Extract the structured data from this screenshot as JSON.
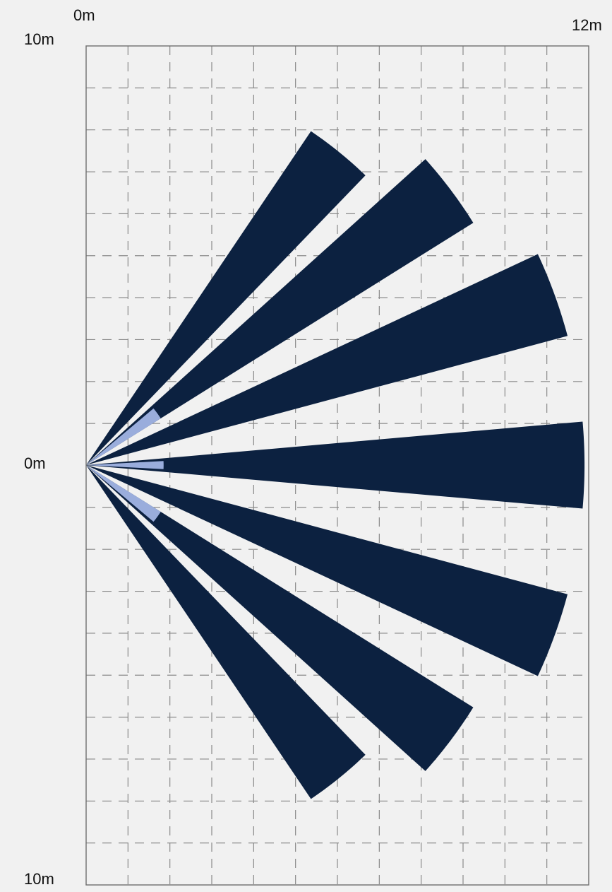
{
  "labels": {
    "x_start": "0m",
    "x_end": "12m",
    "y_top": "10m",
    "y_middle": "0m",
    "y_bottom": "10m"
  },
  "grid": {
    "x_range_m": [
      0,
      12
    ],
    "y_range_m": [
      -10,
      10
    ],
    "columns": 12,
    "rows": 20,
    "line_style": "dashed"
  },
  "colors": {
    "background": "#f1f1f1",
    "grid": "#8a8a8a",
    "beam": "#0c2140",
    "near_zone": "#9aaddc"
  },
  "beams": [
    {
      "angle_deg": 51,
      "inner_range_m": 0,
      "outer_range_m": 9.6,
      "spread_deg": 10
    },
    {
      "angle_deg": 37,
      "inner_range_m": 0,
      "outer_range_m": 10.9,
      "spread_deg": 10
    },
    {
      "angle_deg": 20,
      "inner_range_m": 0,
      "outer_range_m": 11.9,
      "spread_deg": 10
    },
    {
      "angle_deg": 0,
      "inner_range_m": 0,
      "outer_range_m": 11.9,
      "spread_deg": 10
    },
    {
      "angle_deg": -20,
      "inner_range_m": 0,
      "outer_range_m": 11.9,
      "spread_deg": 10
    },
    {
      "angle_deg": -37,
      "inner_range_m": 0,
      "outer_range_m": 10.9,
      "spread_deg": 10
    },
    {
      "angle_deg": -51,
      "inner_range_m": 0,
      "outer_range_m": 9.6,
      "spread_deg": 10
    }
  ],
  "near_zones": [
    {
      "angle_deg": 36,
      "outer_range_m": 2.1,
      "spread_deg": 8
    },
    {
      "angle_deg": 0,
      "outer_range_m": 1.85,
      "spread_deg": 6
    },
    {
      "angle_deg": -36,
      "outer_range_m": 2.1,
      "spread_deg": 8
    }
  ]
}
